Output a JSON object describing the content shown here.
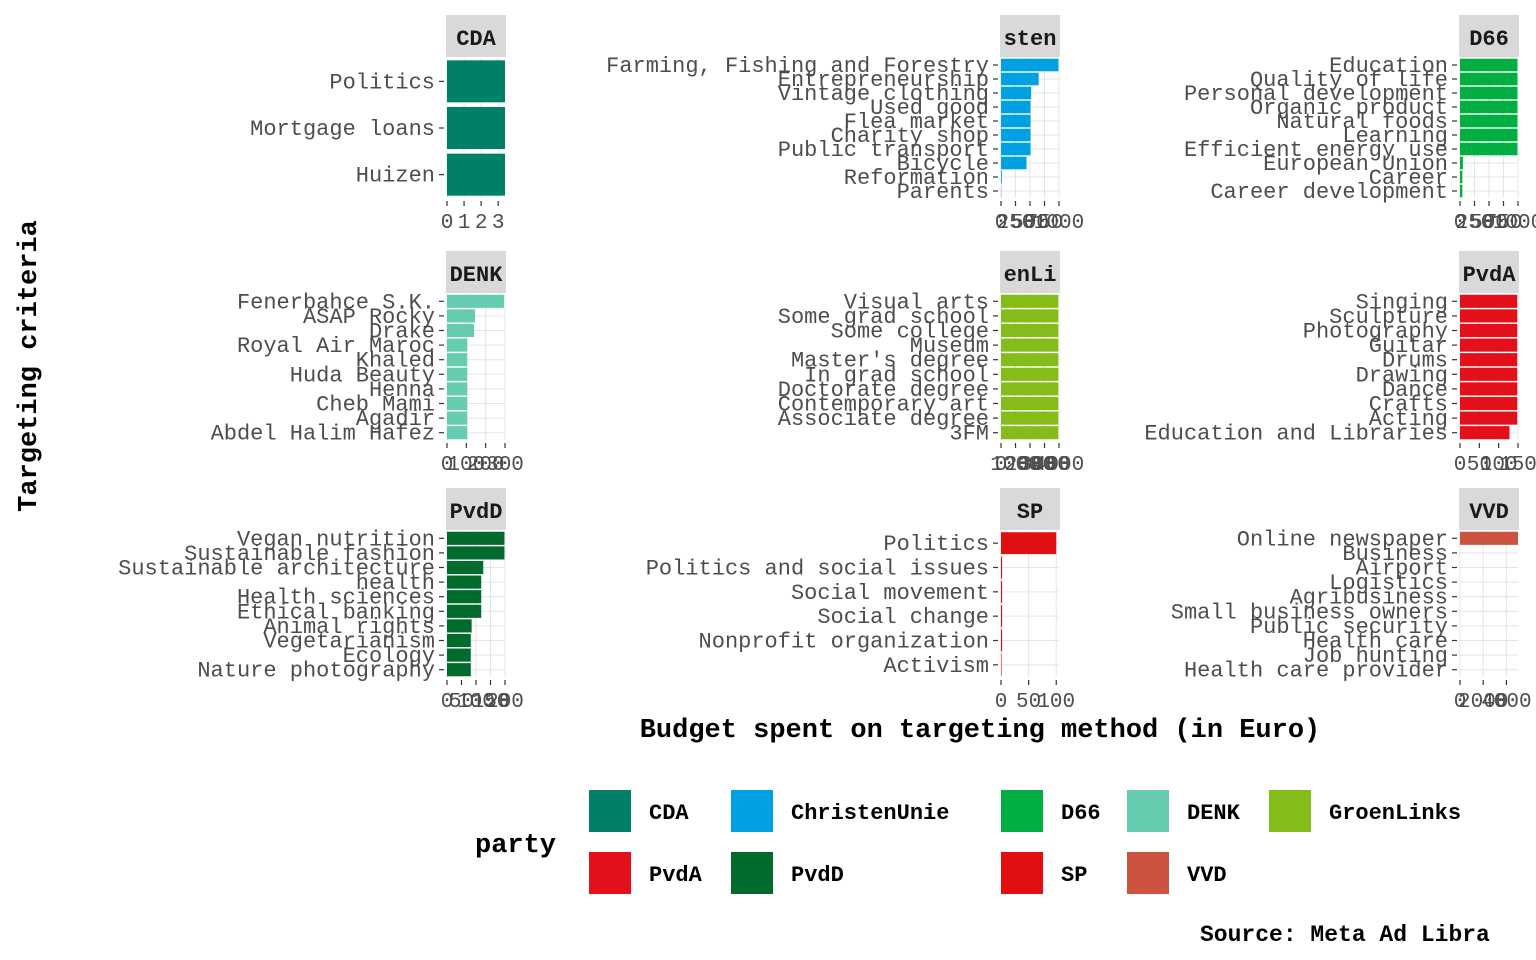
{
  "chart_data": {
    "type": "bar",
    "orientation": "horizontal",
    "ylabel": "Targeting criteria",
    "xlabel": "Budget spent on targeting method (in Euro)",
    "legend_title": "party",
    "caption": "Source: Meta Ad Libra",
    "grid": true,
    "legend_position": "bottom",
    "colors": {
      "CDA": "#008066",
      "ChristenUnie": "#00A1E3",
      "D66": "#00AE41",
      "DENK": "#66CCAF",
      "GroenLinks": "#84BD1A",
      "PvdA": "#E3101C",
      "PvdD": "#006B2D",
      "SP": "#E10F0F",
      "VVD": "#CD5341"
    },
    "legend": [
      {
        "party": "CDA"
      },
      {
        "party": "ChristenUnie"
      },
      {
        "party": "D66"
      },
      {
        "party": "DENK"
      },
      {
        "party": "GroenLinks"
      },
      {
        "party": "PvdA"
      },
      {
        "party": "PvdD"
      },
      {
        "party": "SP"
      },
      {
        "party": "VVD"
      }
    ],
    "panels": [
      {
        "party": "CDA",
        "strip": "CDA",
        "xlim": [
          0,
          3.4
        ],
        "ticks": [
          0,
          1,
          2,
          3
        ],
        "tick_labels": [
          "0",
          "1",
          "2",
          "3"
        ],
        "bars": [
          {
            "label": "Politics",
            "value": 3.4
          },
          {
            "label": "Mortgage loans",
            "value": 3.4
          },
          {
            "label": "Huizen",
            "value": 3.4
          }
        ]
      },
      {
        "party": "ChristenUnie",
        "strip": "sten",
        "xlim": [
          0,
          1000
        ],
        "ticks": [
          0,
          250,
          500,
          750,
          1000
        ],
        "tick_labels": [
          "0",
          "250",
          "500",
          "750",
          "1000"
        ],
        "bars": [
          {
            "label": "Farming, Fishing and Forestry",
            "value": 990
          },
          {
            "label": "Entrepreneurship",
            "value": 650
          },
          {
            "label": "Vintage clothing",
            "value": 520
          },
          {
            "label": "Used good",
            "value": 510
          },
          {
            "label": "Flea market",
            "value": 510
          },
          {
            "label": "Charity shop",
            "value": 510
          },
          {
            "label": "Public transport",
            "value": 510
          },
          {
            "label": "Bicycle",
            "value": 440
          },
          {
            "label": "Reformation",
            "value": 15
          },
          {
            "label": "Parents",
            "value": 5
          }
        ]
      },
      {
        "party": "D66",
        "strip": "D66",
        "xlim": [
          0,
          1000
        ],
        "ticks": [
          0,
          250,
          500,
          750,
          1000
        ],
        "tick_labels": [
          "0",
          "250",
          "500",
          "750",
          "1000"
        ],
        "bars": [
          {
            "label": "Education",
            "value": 990
          },
          {
            "label": "Quality of life",
            "value": 990
          },
          {
            "label": "Personal development",
            "value": 990
          },
          {
            "label": "Organic product",
            "value": 990
          },
          {
            "label": "Natural foods",
            "value": 990
          },
          {
            "label": "Learning",
            "value": 990
          },
          {
            "label": "Efficient energy use",
            "value": 990
          },
          {
            "label": "European Union",
            "value": 50
          },
          {
            "label": "Career",
            "value": 40
          },
          {
            "label": "Career development",
            "value": 40
          }
        ]
      },
      {
        "party": "DENK",
        "strip": "DENK",
        "xlim": [
          0,
          300
        ],
        "ticks": [
          0,
          100,
          200,
          300
        ],
        "tick_labels": [
          "0",
          "100",
          "200",
          "300"
        ],
        "bars": [
          {
            "label": "Fenerbahce S.K.",
            "value": 295
          },
          {
            "label": "ASAP Rocky",
            "value": 145
          },
          {
            "label": "Drake",
            "value": 140
          },
          {
            "label": "Royal Air Maroc",
            "value": 105
          },
          {
            "label": "Khaled",
            "value": 105
          },
          {
            "label": "Huda Beauty",
            "value": 105
          },
          {
            "label": "Henna",
            "value": 105
          },
          {
            "label": "Cheb Mami",
            "value": 105
          },
          {
            "label": "Agadir",
            "value": 105
          },
          {
            "label": "Abdel Halim Hafez",
            "value": 105
          }
        ]
      },
      {
        "party": "GroenLinks",
        "strip": "enLi",
        "xlim": [
          0,
          4000
        ],
        "ticks": [
          0,
          1000,
          2000,
          3000,
          4000
        ],
        "tick_labels": [
          "0",
          "1000",
          "2000",
          "3000",
          "4000"
        ],
        "bars": [
          {
            "label": "Visual arts",
            "value": 3950
          },
          {
            "label": "Some grad school",
            "value": 3950
          },
          {
            "label": "Some college",
            "value": 3950
          },
          {
            "label": "Museum",
            "value": 3950
          },
          {
            "label": "Master's degree",
            "value": 3950
          },
          {
            "label": "In grad school",
            "value": 3950
          },
          {
            "label": "Doctorate degree",
            "value": 3950
          },
          {
            "label": "Contemporary art",
            "value": 3950
          },
          {
            "label": "Associate degree",
            "value": 3950
          },
          {
            "label": "3FM",
            "value": 3950
          }
        ]
      },
      {
        "party": "PvdA",
        "strip": "PvdA",
        "xlim": [
          0,
          150
        ],
        "ticks": [
          0,
          50,
          100,
          150
        ],
        "tick_labels": [
          "0",
          "50",
          "100",
          "150"
        ],
        "bars": [
          {
            "label": "Singing",
            "value": 148
          },
          {
            "label": "Sculpture",
            "value": 148
          },
          {
            "label": "Photography",
            "value": 148
          },
          {
            "label": "Guitar",
            "value": 148
          },
          {
            "label": "Drums",
            "value": 148
          },
          {
            "label": "Drawing",
            "value": 148
          },
          {
            "label": "Dance",
            "value": 148
          },
          {
            "label": "Crafts",
            "value": 148
          },
          {
            "label": "Acting",
            "value": 148
          },
          {
            "label": "Education and Libraries",
            "value": 128
          }
        ]
      },
      {
        "party": "PvdD",
        "strip": "PvdD",
        "xlim": [
          0,
          200
        ],
        "ticks": [
          0,
          50,
          100,
          150,
          200
        ],
        "tick_labels": [
          "0",
          "50",
          "100",
          "150",
          "200"
        ],
        "bars": [
          {
            "label": "Vegan nutrition",
            "value": 198
          },
          {
            "label": "Sustainable fashion",
            "value": 198
          },
          {
            "label": "Sustainable architecture",
            "value": 125
          },
          {
            "label": "health",
            "value": 118
          },
          {
            "label": "Health sciences",
            "value": 118
          },
          {
            "label": "Ethical banking",
            "value": 118
          },
          {
            "label": "Animal rights",
            "value": 85
          },
          {
            "label": "Vegetarianism",
            "value": 82
          },
          {
            "label": "Ecology",
            "value": 82
          },
          {
            "label": "Nature photography",
            "value": 82
          }
        ]
      },
      {
        "party": "SP",
        "strip": "SP",
        "xlim": [
          0,
          105
        ],
        "ticks": [
          0,
          50,
          100
        ],
        "tick_labels": [
          "0",
          "50",
          "100"
        ],
        "bars": [
          {
            "label": "Politics",
            "value": 100
          },
          {
            "label": "Politics and social issues",
            "value": 2
          },
          {
            "label": "Social movement",
            "value": 2
          },
          {
            "label": "Social change",
            "value": 2
          },
          {
            "label": "Nonprofit organization",
            "value": 2
          },
          {
            "label": "Activism",
            "value": 1
          }
        ]
      },
      {
        "party": "VVD",
        "strip": "VVD",
        "xlim": [
          0,
          5000
        ],
        "ticks": [
          0,
          2000,
          4000
        ],
        "tick_labels": [
          "0",
          "2000",
          "4000"
        ],
        "bars": [
          {
            "label": "Online newspaper",
            "value": 5000
          },
          {
            "label": "Business",
            "value": 0
          },
          {
            "label": "Airport",
            "value": 0
          },
          {
            "label": "Logistics",
            "value": 0
          },
          {
            "label": "Agribusiness",
            "value": 0
          },
          {
            "label": "Small business owners",
            "value": 0
          },
          {
            "label": "Public security",
            "value": 0
          },
          {
            "label": "Health care",
            "value": 0
          },
          {
            "label": "Job hunting",
            "value": 0
          },
          {
            "label": "Health care provider",
            "value": 0
          }
        ]
      }
    ]
  }
}
